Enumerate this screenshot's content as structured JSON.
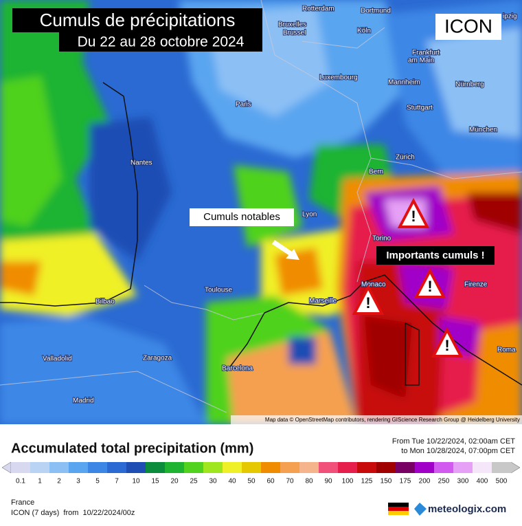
{
  "header": {
    "title": "Cumuls de précipitations",
    "subtitle": "Du 22 au 28 octobre 2024"
  },
  "model_badge": "ICON",
  "annotations": [
    "Cumuls notables",
    "Importants cumuls !"
  ],
  "cities": [
    "Rotterdam",
    "Dortmund",
    "ipzig",
    "Bruxelles",
    "Brussel",
    "Köln",
    "Frankfurt",
    "am Main",
    "Luxembourg",
    "Mannheim",
    "Nürnberg",
    "Paris",
    "Stuttgart",
    "München",
    "Nantes",
    "Zürich",
    "Bern",
    "Lyon",
    "Torino",
    "Monaco",
    "Firenze",
    "Marseille",
    "Toulouse",
    "Bilbao",
    "Valladolid",
    "Zaragoza",
    "Barcelona",
    "Madrid",
    "Roma"
  ],
  "attribution": "Map data © OpenStreetMap contributors, rendering GIScience Research Group @ Heidelberg University",
  "legend": {
    "title": "Accumulated total precipitation (mm)",
    "ticks": [
      0.1,
      1,
      2,
      3,
      5,
      7,
      10,
      15,
      20,
      25,
      30,
      40,
      50,
      60,
      70,
      80,
      90,
      100,
      125,
      150,
      175,
      200,
      250,
      300,
      400,
      500
    ],
    "colors": [
      "#d8d8f0",
      "#b9d3f5",
      "#8cc0f5",
      "#5aa5f0",
      "#3c87e6",
      "#2a6ad2",
      "#1e4eb4",
      "#0a8c3c",
      "#1eb432",
      "#50d21e",
      "#a0e61e",
      "#f0f028",
      "#e6c800",
      "#f08c00",
      "#f5a050",
      "#f5b48c",
      "#f0507a",
      "#e61e4b",
      "#c80a0a",
      "#a00000",
      "#780064",
      "#a000c8",
      "#d25af0",
      "#e6a0f5",
      "#f5e6fa",
      "#c8c8c8"
    ]
  },
  "period": {
    "from": "From Tue 10/22/2024, 02:00am CET",
    "to": "to Mon 10/28/2024, 07:00pm CET"
  },
  "footer": {
    "region": "France",
    "run": "ICON (7 days)  from  10/22/2024/00z",
    "brand": "meteologix.com"
  }
}
